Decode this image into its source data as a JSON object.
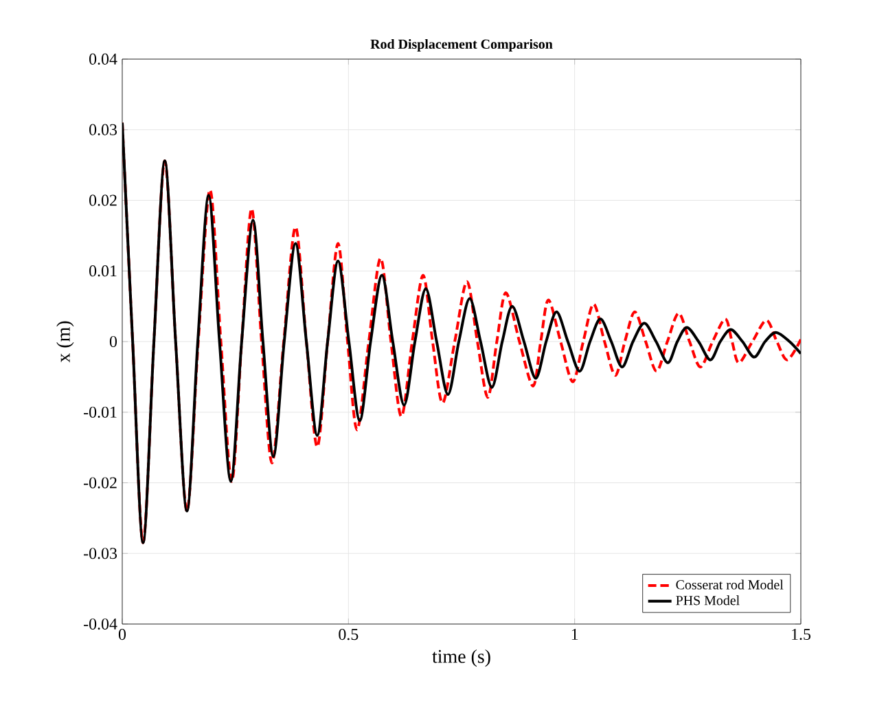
{
  "chart_data": {
    "type": "line",
    "title": "Rod Displacement Comparison",
    "xlabel": "time (s)",
    "ylabel": "x (m)",
    "xlim": [
      0,
      1.5
    ],
    "xticks": [
      0,
      0.5,
      1,
      1.5
    ],
    "ylim": [
      -0.04,
      0.04
    ],
    "yticks": [
      -0.04,
      -0.03,
      -0.02,
      -0.01,
      0,
      0.01,
      0.02,
      0.03,
      0.04
    ],
    "grid": true,
    "legend": "bottom right",
    "series": [
      {
        "name": "Cosserat rod Model",
        "color": "#ff0000",
        "line_style": "dashed",
        "x": [
          0,
          0.023,
          0.046,
          0.07,
          0.094,
          0.118,
          0.143,
          0.168,
          0.194,
          0.218,
          0.242,
          0.264,
          0.286,
          0.308,
          0.331,
          0.357,
          0.383,
          0.407,
          0.431,
          0.454,
          0.477,
          0.498,
          0.519,
          0.545,
          0.571,
          0.594,
          0.617,
          0.641,
          0.665,
          0.686,
          0.708,
          0.735,
          0.762,
          0.785,
          0.808,
          0.828,
          0.848,
          0.878,
          0.908,
          0.925,
          0.942,
          0.969,
          0.996,
          1.019,
          1.042,
          1.066,
          1.09,
          1.111,
          1.133,
          1.157,
          1.181,
          1.205,
          1.23,
          1.254,
          1.278,
          1.305,
          1.333,
          1.348,
          1.363,
          1.393,
          1.424,
          1.447,
          1.47,
          1.5
        ],
        "values": [
          0.031,
          0,
          -0.0285,
          0,
          0.0256,
          0,
          -0.024,
          0,
          0.0215,
          0,
          -0.0198,
          0,
          0.0188,
          0,
          -0.0172,
          0,
          0.0162,
          0,
          -0.0149,
          0,
          0.0139,
          0,
          -0.0125,
          0,
          0.0118,
          0,
          -0.0106,
          0,
          0.0094,
          0,
          -0.0087,
          0,
          0.0085,
          0,
          -0.0079,
          0,
          0.0069,
          0,
          -0.0063,
          0,
          0.0059,
          0,
          -0.0057,
          0,
          0.0053,
          0,
          -0.0048,
          0,
          0.0042,
          0,
          -0.0042,
          0,
          0.004,
          0,
          -0.0036,
          0,
          0.0032,
          0,
          -0.003,
          0,
          0.003,
          0,
          -0.0026,
          0.0003
        ]
      },
      {
        "name": "PHS Model",
        "color": "#000000",
        "line_style": "solid",
        "x": [
          0,
          0.023,
          0.046,
          0.07,
          0.094,
          0.118,
          0.143,
          0.167,
          0.191,
          0.215,
          0.24,
          0.264,
          0.289,
          0.311,
          0.334,
          0.358,
          0.383,
          0.407,
          0.431,
          0.454,
          0.477,
          0.501,
          0.525,
          0.549,
          0.574,
          0.598,
          0.623,
          0.647,
          0.671,
          0.695,
          0.72,
          0.744,
          0.768,
          0.792,
          0.817,
          0.84,
          0.862,
          0.888,
          0.914,
          0.937,
          0.96,
          0.985,
          1.011,
          1.034,
          1.057,
          1.081,
          1.105,
          1.129,
          1.154,
          1.18,
          1.206,
          1.227,
          1.248,
          1.274,
          1.3,
          1.322,
          1.345,
          1.371,
          1.397,
          1.421,
          1.445,
          1.475,
          1.5
        ],
        "values": [
          0.031,
          0,
          -0.0285,
          0,
          0.0256,
          0,
          -0.024,
          0,
          0.0207,
          0,
          -0.0198,
          0,
          0.0172,
          0,
          -0.0163,
          0,
          0.0139,
          0,
          -0.0133,
          0,
          0.0114,
          0,
          -0.0112,
          0,
          0.0094,
          0,
          -0.009,
          0,
          0.0075,
          0,
          -0.0075,
          0,
          0.0061,
          0,
          -0.0065,
          0,
          0.005,
          0,
          -0.0052,
          0,
          0.0042,
          0,
          -0.0042,
          0,
          0.0032,
          0,
          -0.0036,
          0,
          0.0026,
          0,
          -0.003,
          0,
          0.002,
          0,
          -0.0026,
          0,
          0.0017,
          0,
          -0.0022,
          0,
          0.0013,
          0,
          -0.0017
        ]
      }
    ]
  }
}
